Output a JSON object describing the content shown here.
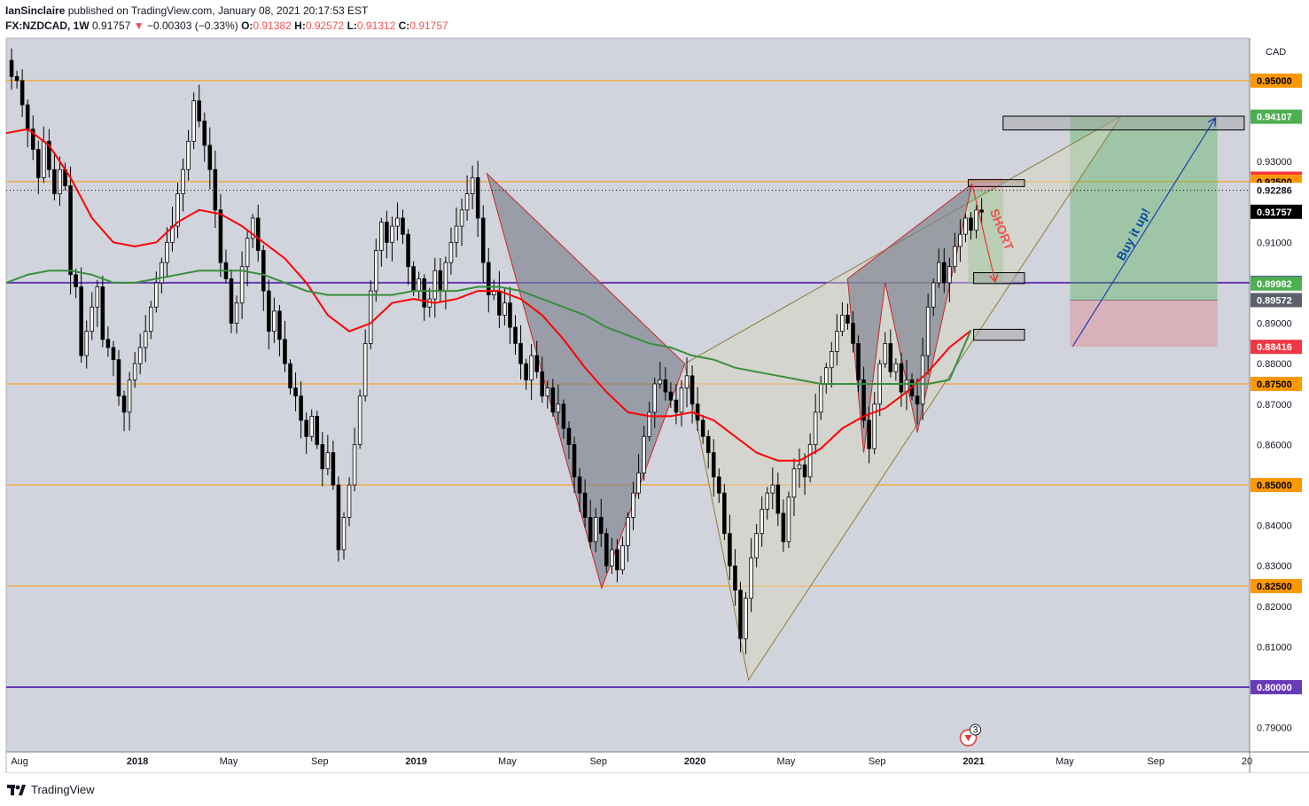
{
  "header": {
    "author": "IanSinclaire",
    "published": "published on TradingView.com, January 08, 2021 20:17:53 EST",
    "symbol": "FX:NZDCAD, 1W",
    "last": "0.91757",
    "change_arrow": "▼",
    "change": "−0.00303 (−0.33%)",
    "o_label": "O:",
    "o_val": "0.91382",
    "h_label": "H:",
    "h_val": "0.92572",
    "l_label": "L:",
    "l_val": "0.91312",
    "c_label": "C:",
    "c_val": "0.91757"
  },
  "footer": {
    "brand": "TradingView",
    "logo_icon": "tradingview-logo-icon"
  },
  "chart_data": {
    "type": "candlestick",
    "symbol": "FX:NZDCAD",
    "interval": "1W",
    "currency": "CAD",
    "y_range": [
      0.784,
      0.9605
    ],
    "y_ticks": [
      "0.93000",
      "0.91000",
      "0.89000",
      "0.88000",
      "0.87000",
      "0.86000",
      "0.85000",
      "0.84000",
      "0.83000",
      "0.82000",
      "0.81000",
      "0.79000"
    ],
    "x_ticks": [
      {
        "label": "Aug",
        "t": 2.5
      },
      {
        "label": "2018",
        "t": 24.5
      },
      {
        "label": "May",
        "t": 41.5
      },
      {
        "label": "Sep",
        "t": 58.5
      },
      {
        "label": "2019",
        "t": 76.5
      },
      {
        "label": "May",
        "t": 93.5
      },
      {
        "label": "Sep",
        "t": 110.5
      },
      {
        "label": "2020",
        "t": 128.5
      },
      {
        "label": "May",
        "t": 145.5
      },
      {
        "label": "Sep",
        "t": 162.5
      },
      {
        "label": "2021",
        "t": 180.5
      },
      {
        "label": "May",
        "t": 197.5
      },
      {
        "label": "Sep",
        "t": 214.5
      },
      {
        "label": "20",
        "t": 231.5
      }
    ],
    "t_range": [
      0,
      232
    ],
    "closes": [
      0.955,
      0.951,
      0.95,
      0.944,
      0.938,
      0.933,
      0.926,
      0.935,
      0.928,
      0.922,
      0.928,
      0.924,
      0.902,
      0.899,
      0.882,
      0.888,
      0.894,
      0.899,
      0.886,
      0.884,
      0.881,
      0.872,
      0.868,
      0.876,
      0.88,
      0.884,
      0.888,
      0.894,
      0.9,
      0.905,
      0.91,
      0.914,
      0.922,
      0.928,
      0.935,
      0.945,
      0.94,
      0.934,
      0.928,
      0.918,
      0.905,
      0.901,
      0.89,
      0.895,
      0.904,
      0.911,
      0.916,
      0.908,
      0.898,
      0.888,
      0.893,
      0.886,
      0.88,
      0.874,
      0.872,
      0.866,
      0.862,
      0.867,
      0.86,
      0.854,
      0.858,
      0.85,
      0.834,
      0.842,
      0.85,
      0.86,
      0.872,
      0.885,
      0.898,
      0.908,
      0.915,
      0.91,
      0.914,
      0.916,
      0.912,
      0.904,
      0.898,
      0.901,
      0.894,
      0.896,
      0.903,
      0.898,
      0.905,
      0.91,
      0.914,
      0.918,
      0.922,
      0.926,
      0.916,
      0.905,
      0.897,
      0.898,
      0.892,
      0.895,
      0.889,
      0.885,
      0.88,
      0.876,
      0.882,
      0.878,
      0.872,
      0.874,
      0.868,
      0.87,
      0.864,
      0.86,
      0.852,
      0.848,
      0.842,
      0.836,
      0.842,
      0.838,
      0.83,
      0.834,
      0.829,
      0.835,
      0.842,
      0.848,
      0.853,
      0.862,
      0.868,
      0.875,
      0.876,
      0.873,
      0.871,
      0.868,
      0.874,
      0.877,
      0.87,
      0.866,
      0.862,
      0.858,
      0.852,
      0.848,
      0.838,
      0.83,
      0.824,
      0.812,
      0.822,
      0.832,
      0.838,
      0.844,
      0.848,
      0.85,
      0.843,
      0.836,
      0.847,
      0.854,
      0.855,
      0.852,
      0.86,
      0.868,
      0.875,
      0.879,
      0.883,
      0.888,
      0.892,
      0.89,
      0.885,
      0.876,
      0.866,
      0.859,
      0.87,
      0.88,
      0.885,
      0.878,
      0.88,
      0.873,
      0.876,
      0.872,
      0.87,
      0.882,
      0.894,
      0.9,
      0.905,
      0.9,
      0.904,
      0.909,
      0.912,
      0.916,
      0.913,
      0.918,
      0.9175
    ],
    "ma_red": {
      "name": "",
      "color": "#ff0000",
      "points": [
        [
          0,
          0.937
        ],
        [
          4,
          0.938
        ],
        [
          8,
          0.934
        ],
        [
          12,
          0.926
        ],
        [
          16,
          0.916
        ],
        [
          20,
          0.91
        ],
        [
          24,
          0.909
        ],
        [
          28,
          0.91
        ],
        [
          32,
          0.915
        ],
        [
          36,
          0.918
        ],
        [
          40,
          0.917
        ],
        [
          44,
          0.914
        ],
        [
          48,
          0.91
        ],
        [
          52,
          0.906
        ],
        [
          56,
          0.9
        ],
        [
          60,
          0.892
        ],
        [
          64,
          0.888
        ],
        [
          68,
          0.89
        ],
        [
          72,
          0.895
        ],
        [
          76,
          0.896
        ],
        [
          80,
          0.895
        ],
        [
          84,
          0.896
        ],
        [
          88,
          0.898
        ],
        [
          92,
          0.898
        ],
        [
          96,
          0.896
        ],
        [
          100,
          0.892
        ],
        [
          104,
          0.886
        ],
        [
          108,
          0.879
        ],
        [
          112,
          0.873
        ],
        [
          116,
          0.868
        ],
        [
          120,
          0.867
        ],
        [
          124,
          0.867
        ],
        [
          128,
          0.868
        ],
        [
          132,
          0.866
        ],
        [
          136,
          0.862
        ],
        [
          140,
          0.858
        ],
        [
          144,
          0.856
        ],
        [
          148,
          0.856
        ],
        [
          152,
          0.859
        ],
        [
          156,
          0.864
        ],
        [
          160,
          0.867
        ],
        [
          164,
          0.869
        ],
        [
          168,
          0.873
        ],
        [
          172,
          0.878
        ],
        [
          176,
          0.884
        ],
        [
          180,
          0.8882
        ]
      ]
    },
    "ma_green": {
      "name": "",
      "color": "#388e3c",
      "points": [
        [
          0,
          0.9
        ],
        [
          4,
          0.902
        ],
        [
          8,
          0.903
        ],
        [
          12,
          0.903
        ],
        [
          16,
          0.902
        ],
        [
          20,
          0.9
        ],
        [
          24,
          0.9
        ],
        [
          28,
          0.901
        ],
        [
          32,
          0.902
        ],
        [
          36,
          0.903
        ],
        [
          40,
          0.903
        ],
        [
          44,
          0.903
        ],
        [
          48,
          0.902
        ],
        [
          52,
          0.9
        ],
        [
          56,
          0.898
        ],
        [
          60,
          0.897
        ],
        [
          64,
          0.897
        ],
        [
          68,
          0.897
        ],
        [
          72,
          0.897
        ],
        [
          76,
          0.898
        ],
        [
          80,
          0.898
        ],
        [
          84,
          0.898
        ],
        [
          88,
          0.899
        ],
        [
          92,
          0.899
        ],
        [
          96,
          0.898
        ],
        [
          100,
          0.896
        ],
        [
          104,
          0.894
        ],
        [
          108,
          0.892
        ],
        [
          112,
          0.889
        ],
        [
          116,
          0.887
        ],
        [
          120,
          0.885
        ],
        [
          124,
          0.884
        ],
        [
          128,
          0.882
        ],
        [
          132,
          0.881
        ],
        [
          136,
          0.879
        ],
        [
          140,
          0.878
        ],
        [
          144,
          0.877
        ],
        [
          148,
          0.876
        ],
        [
          152,
          0.875
        ],
        [
          156,
          0.875
        ],
        [
          160,
          0.875
        ],
        [
          164,
          0.875
        ],
        [
          168,
          0.875
        ],
        [
          172,
          0.875
        ],
        [
          176,
          0.876
        ],
        [
          180,
          0.8883
        ]
      ]
    },
    "horizontal_levels": [
      {
        "price": 0.95,
        "color": "#ff9800",
        "label": "0.95000"
      },
      {
        "price": 0.925,
        "color": "#ff9800",
        "label": "0.92500"
      },
      {
        "price": 0.9,
        "color": "#673ab7",
        "label": "0.90000"
      },
      {
        "price": 0.875,
        "color": "#ff9800",
        "label": "0.87500"
      },
      {
        "price": 0.85,
        "color": "#ff9800",
        "label": "0.85000"
      },
      {
        "price": 0.825,
        "color": "#ff9800",
        "label": "0.82500"
      },
      {
        "price": 0.8,
        "color": "#673ab7",
        "label": "0.80000"
      }
    ],
    "price_tags": [
      {
        "price": 0.95,
        "label": "0.95000",
        "bg": "#ff9800",
        "fg": "#000000"
      },
      {
        "price": 0.94107,
        "label": "0.94107",
        "bg": "#4caf50",
        "fg": "#ffffff"
      },
      {
        "price": 0.92575,
        "label": "0.92575",
        "bg": "#f23645",
        "fg": "#ffffff"
      },
      {
        "price": 0.925,
        "label": "0.92500",
        "bg": "#ff9800",
        "fg": "#000000"
      },
      {
        "price": 0.92286,
        "label": "0.92286",
        "bg": "#ffffff",
        "fg": "#131722"
      },
      {
        "price": 0.91757,
        "label": "0.91757",
        "bg": "#000000",
        "fg": "#ffffff"
      },
      {
        "price": 0.9,
        "label": "0.90000",
        "bg": "#673ab7",
        "fg": "#ffffff"
      },
      {
        "price": 0.89982,
        "label": "0.89982",
        "bg": "#4caf50",
        "fg": "#ffffff"
      },
      {
        "price": 0.89572,
        "label": "0.89572",
        "bg": "#5d606b",
        "fg": "#ffffff"
      },
      {
        "price": 0.88416,
        "label": "0.88416",
        "bg": "#f23645",
        "fg": "#ffffff"
      },
      {
        "price": 0.875,
        "label": "0.87500",
        "bg": "#ff9800",
        "fg": "#000000"
      },
      {
        "price": 0.85,
        "label": "0.85000",
        "bg": "#ff9800",
        "fg": "#000000"
      },
      {
        "price": 0.825,
        "label": "0.82500",
        "bg": "#ff9800",
        "fg": "#000000"
      },
      {
        "price": 0.8,
        "label": "0.80000",
        "bg": "#673ab7",
        "fg": "#ffffff"
      }
    ],
    "patterns": [
      {
        "kind": "bearish-pattern-grey",
        "points": [
          [
            89.7,
            0.927
          ],
          [
            126.6,
            0.88
          ],
          [
            111.1,
            0.8245
          ]
        ],
        "fill": "#7b7f8c"
      },
      {
        "kind": "large-pattern-beige",
        "points": [
          [
            126.6,
            0.88
          ],
          [
            138.5,
            0.8018
          ],
          [
            208,
            0.9412
          ]
        ],
        "fill": "#d9d7c2"
      },
      {
        "kind": "right-pattern-grey",
        "points": [
          [
            157,
            0.901
          ],
          [
            160,
            0.858
          ],
          [
            164,
            0.9
          ],
          [
            170,
            0.863
          ],
          [
            180.2,
            0.9245
          ]
        ],
        "fill": "#7b7f8c"
      }
    ],
    "annotations": [
      {
        "text": "SHORT",
        "color": "#ef5350",
        "price": 0.9128,
        "t": 185
      },
      {
        "text": "Buy it up!",
        "color": "#0d47a1",
        "price": 0.9115,
        "t": 211
      }
    ],
    "positions": [
      {
        "kind": "long",
        "t0": 198.5,
        "t1": 226,
        "entry": 0.89572,
        "target": 0.94107,
        "stop": 0.88416
      },
      {
        "kind": "short",
        "t0": 179.5,
        "t1": 186,
        "entry": 0.92286,
        "target": 0.89982,
        "stop": 0.92575
      }
    ],
    "boxes": [
      {
        "t0": 186,
        "t1": 231,
        "p0": 0.9378,
        "p1": 0.9412
      },
      {
        "t0": 179.5,
        "t1": 190,
        "p0": 0.9238,
        "p1": 0.9255
      },
      {
        "t0": 180.5,
        "t1": 190,
        "p0": 0.8998,
        "p1": 0.9025
      },
      {
        "t0": 180.5,
        "t1": 190,
        "p0": 0.8858,
        "p1": 0.8885
      }
    ],
    "event_badge": {
      "count": "3",
      "t": 179.5,
      "price": 0.7875
    }
  }
}
